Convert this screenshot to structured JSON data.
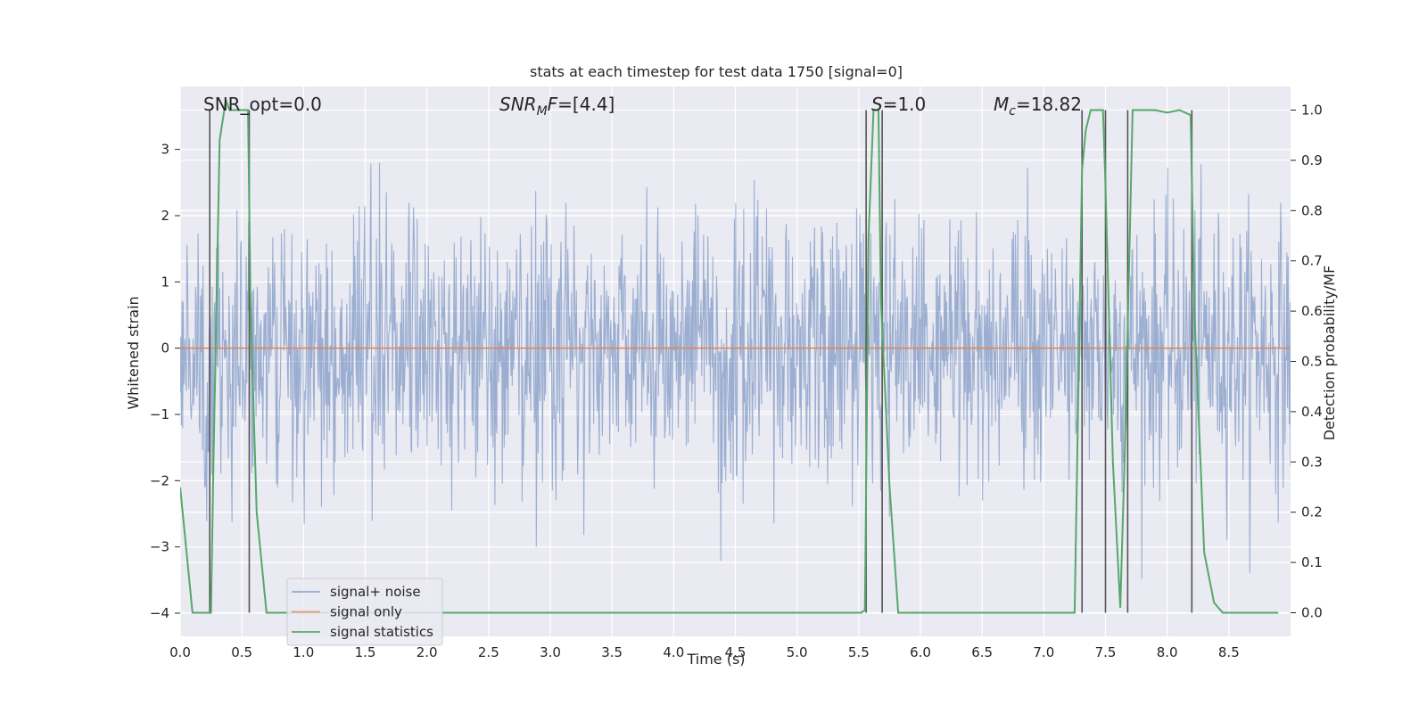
{
  "chart_data": {
    "type": "line",
    "title": "stats at each timestep for test data 1750 [signal=0]",
    "xlabel": "Time (s)",
    "ylabel_left": "Whitened strain",
    "ylabel_right": "Detection probability/MF",
    "xlim": [
      0.0,
      9.0
    ],
    "ylim_left": [
      -4.35,
      3.95
    ],
    "ylim_right": [
      -0.047,
      1.047
    ],
    "x_ticks": [
      "0.0",
      "0.5",
      "1.0",
      "1.5",
      "2.0",
      "2.5",
      "3.0",
      "3.5",
      "4.0",
      "4.5",
      "5.0",
      "5.5",
      "6.0",
      "6.5",
      "7.0",
      "7.5",
      "8.0",
      "8.5"
    ],
    "y_ticks_left": [
      "3",
      "2",
      "1",
      "0",
      "−1",
      "−2",
      "−3",
      "−4"
    ],
    "y_ticks_right": [
      "1.0",
      "0.9",
      "0.8",
      "0.7",
      "0.6",
      "0.5",
      "0.4",
      "0.3",
      "0.2",
      "0.1",
      "0.0"
    ],
    "grid": true,
    "legend_position": "lower-left",
    "annotations": [
      {
        "id": "snr-opt",
        "text": "SNR_opt=0.0"
      },
      {
        "id": "snr-mf",
        "parts": [
          {
            "t": "SNR",
            "i": true
          },
          {
            "t": "M",
            "i": true,
            "sub": true
          },
          {
            "t": "F",
            "i": true
          },
          {
            "t": "=[4.4]",
            "i": false
          }
        ]
      },
      {
        "id": "s-val",
        "parts": [
          {
            "t": "S",
            "i": true
          },
          {
            "t": "=1.0",
            "i": false
          }
        ]
      },
      {
        "id": "mc-val",
        "parts": [
          {
            "t": "M",
            "i": true
          },
          {
            "t": "c",
            "i": true,
            "sub": true
          },
          {
            "t": "=18.82",
            "i": false
          }
        ]
      }
    ],
    "series": [
      {
        "name": "signal+ noise",
        "color": "#4c72b0",
        "style": "noise",
        "amplitude_sd": 1.0,
        "samples": 1800
      },
      {
        "name": "signal only",
        "color": "#dd8452",
        "style": "flat",
        "value": 0.0
      },
      {
        "name": "signal statistics",
        "color": "#55a868",
        "style": "line",
        "x": [
          0.0,
          0.06,
          0.1,
          0.25,
          0.27,
          0.32,
          0.37,
          0.4,
          0.45,
          0.5,
          0.55,
          0.57,
          0.62,
          0.7,
          5.4,
          5.52,
          5.55,
          5.58,
          5.62,
          5.66,
          5.68,
          5.75,
          5.82,
          7.25,
          7.31,
          7.34,
          7.38,
          7.42,
          7.48,
          7.5,
          7.56,
          7.62,
          7.66,
          7.72,
          7.76,
          7.82,
          7.9,
          8.0,
          8.1,
          8.19,
          8.22,
          8.3,
          8.38,
          8.45,
          8.6,
          8.9
        ],
        "y": [
          0.25,
          0.1,
          0.0,
          0.0,
          0.3,
          0.94,
          1.02,
          1.0,
          1.0,
          1.0,
          1.0,
          0.62,
          0.2,
          0.0,
          0.0,
          0.0,
          0.005,
          0.75,
          1.0,
          1.0,
          0.62,
          0.25,
          0.0,
          0.0,
          0.88,
          0.96,
          1.0,
          1.0,
          1.0,
          0.85,
          0.3,
          0.01,
          0.35,
          1.0,
          1.0,
          1.0,
          1.0,
          0.995,
          1.0,
          0.99,
          0.6,
          0.12,
          0.02,
          0.0,
          0.0,
          0.0
        ]
      }
    ],
    "markers": [
      0.24,
      0.56,
      5.56,
      5.69,
      7.31,
      7.5,
      7.68,
      8.2
    ]
  }
}
